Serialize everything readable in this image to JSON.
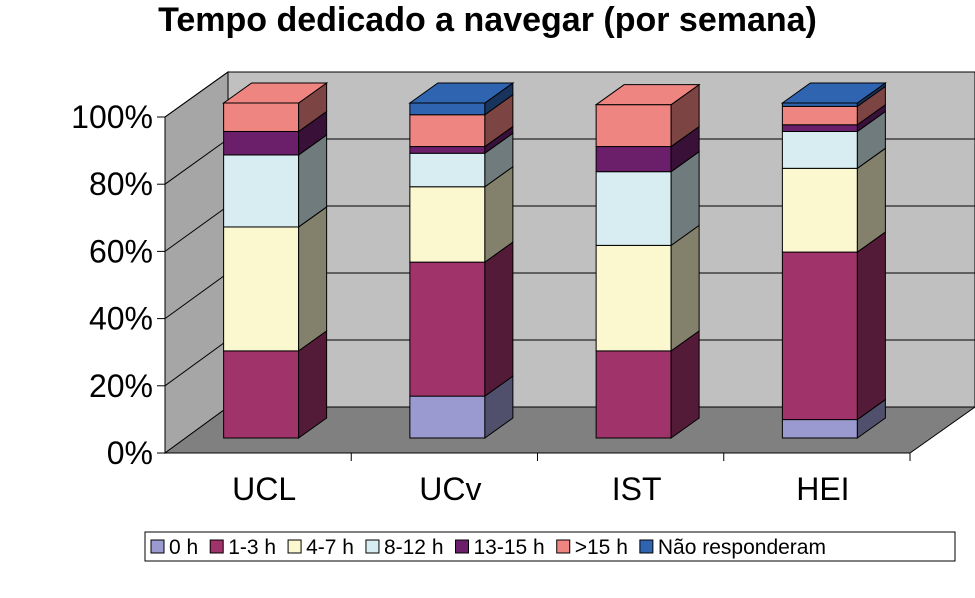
{
  "chart_data": {
    "type": "bar",
    "stacked": true,
    "three_d": true,
    "title": "Tempo dedicado a navegar (por semana)",
    "categories": [
      "UCL",
      "UCv",
      "IST",
      "HEI"
    ],
    "y_ticks": [
      "0%",
      "20%",
      "40%",
      "60%",
      "80%",
      "100%"
    ],
    "ylim": [
      0,
      100
    ],
    "grid": true,
    "legend_position": "bottom",
    "series": [
      {
        "name": "0 h",
        "color": "#9a9ad0",
        "values": [
          0,
          12.5,
          0,
          5.5
        ]
      },
      {
        "name": "1-3 h",
        "color": "#a0336a",
        "values": [
          26,
          40,
          26,
          50
        ]
      },
      {
        "name": "4-7 h",
        "color": "#fbf8cf",
        "values": [
          37,
          22.5,
          31.5,
          25
        ]
      },
      {
        "name": "8-12 h",
        "color": "#d8edf1",
        "values": [
          21.5,
          10,
          22,
          11
        ]
      },
      {
        "name": "13-15 h",
        "color": "#6b1f6b",
        "values": [
          7,
          2,
          7.5,
          2
        ]
      },
      {
        "name": ">15 h",
        "color": "#ee8580",
        "values": [
          8.5,
          9.5,
          12.5,
          5.5
        ]
      },
      {
        "name": "Não responderam",
        "color": "#2f64b0",
        "values": [
          0,
          3.5,
          0,
          1
        ]
      }
    ]
  }
}
